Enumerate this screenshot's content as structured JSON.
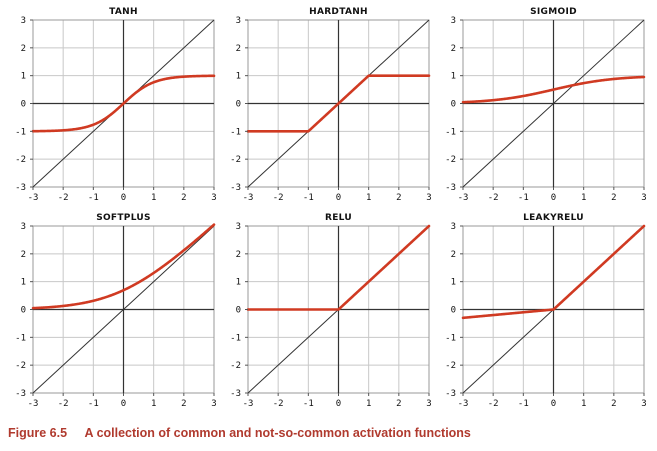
{
  "caption": {
    "figure_number": "Figure 6.5",
    "text": "A collection of common and not-so-common activation functions"
  },
  "colors": {
    "curve": "#d03a22",
    "identity": "#333333",
    "grid": "#c8c8c8",
    "axis": "#333333",
    "caption": "#b03a2e"
  },
  "chart_data": [
    {
      "type": "line",
      "title": "TANH",
      "function": "tanh",
      "xlim": [
        -3,
        3
      ],
      "ylim": [
        -3,
        3
      ],
      "xticks": [
        -3,
        -2,
        -1,
        0,
        1,
        2,
        3
      ],
      "yticks": [
        -3,
        -2,
        -1,
        0,
        1,
        2,
        3
      ],
      "series": [
        {
          "name": "tanh",
          "x": [
            -3,
            -2,
            -1,
            0,
            1,
            2,
            3
          ],
          "y": [
            -1.0,
            -0.96,
            -0.76,
            0,
            0.76,
            0.96,
            1.0
          ]
        },
        {
          "name": "identity",
          "x": [
            -3,
            3
          ],
          "y": [
            -3,
            3
          ]
        }
      ]
    },
    {
      "type": "line",
      "title": "HARDTANH",
      "function": "hardtanh",
      "xlim": [
        -3,
        3
      ],
      "ylim": [
        -3,
        3
      ],
      "xticks": [
        -3,
        -2,
        -1,
        0,
        1,
        2,
        3
      ],
      "yticks": [
        -3,
        -2,
        -1,
        0,
        1,
        2,
        3
      ],
      "series": [
        {
          "name": "hardtanh",
          "x": [
            -3,
            -1,
            1,
            3
          ],
          "y": [
            -1,
            -1,
            1,
            1
          ]
        },
        {
          "name": "identity",
          "x": [
            -3,
            3
          ],
          "y": [
            -3,
            3
          ]
        }
      ]
    },
    {
      "type": "line",
      "title": "SIGMOID",
      "function": "sigmoid",
      "xlim": [
        -3,
        3
      ],
      "ylim": [
        -3,
        3
      ],
      "xticks": [
        -3,
        -2,
        -1,
        0,
        1,
        2,
        3
      ],
      "yticks": [
        -3,
        -2,
        -1,
        0,
        1,
        2,
        3
      ],
      "series": [
        {
          "name": "sigmoid",
          "x": [
            -3,
            -2,
            -1,
            0,
            1,
            2,
            3
          ],
          "y": [
            0.05,
            0.12,
            0.27,
            0.5,
            0.73,
            0.88,
            0.95
          ]
        },
        {
          "name": "identity",
          "x": [
            -3,
            3
          ],
          "y": [
            -3,
            3
          ]
        }
      ]
    },
    {
      "type": "line",
      "title": "SOFTPLUS",
      "function": "softplus",
      "xlim": [
        -3,
        3
      ],
      "ylim": [
        -3,
        3
      ],
      "xticks": [
        -3,
        -2,
        -1,
        0,
        1,
        2,
        3
      ],
      "yticks": [
        -3,
        -2,
        -1,
        0,
        1,
        2,
        3
      ],
      "series": [
        {
          "name": "softplus",
          "x": [
            -3,
            -2,
            -1,
            0,
            1,
            2,
            3
          ],
          "y": [
            0.05,
            0.13,
            0.31,
            0.69,
            1.31,
            2.13,
            3.05
          ]
        },
        {
          "name": "identity",
          "x": [
            -3,
            3
          ],
          "y": [
            -3,
            3
          ]
        }
      ]
    },
    {
      "type": "line",
      "title": "RELU",
      "function": "relu",
      "xlim": [
        -3,
        3
      ],
      "ylim": [
        -3,
        3
      ],
      "xticks": [
        -3,
        -2,
        -1,
        0,
        1,
        2,
        3
      ],
      "yticks": [
        -3,
        -2,
        -1,
        0,
        1,
        2,
        3
      ],
      "series": [
        {
          "name": "relu",
          "x": [
            -3,
            0,
            3
          ],
          "y": [
            0,
            0,
            3
          ]
        },
        {
          "name": "identity",
          "x": [
            -3,
            3
          ],
          "y": [
            -3,
            3
          ]
        }
      ]
    },
    {
      "type": "line",
      "title": "LEAKYRELU",
      "function": "leakyrelu",
      "xlim": [
        -3,
        3
      ],
      "ylim": [
        -3,
        3
      ],
      "xticks": [
        -3,
        -2,
        -1,
        0,
        1,
        2,
        3
      ],
      "yticks": [
        -3,
        -2,
        -1,
        0,
        1,
        2,
        3
      ],
      "series": [
        {
          "name": "leakyrelu",
          "x": [
            -3,
            0,
            3
          ],
          "y": [
            -0.3,
            0,
            3
          ]
        },
        {
          "name": "identity",
          "x": [
            -3,
            3
          ],
          "y": [
            -3,
            3
          ]
        }
      ]
    }
  ]
}
